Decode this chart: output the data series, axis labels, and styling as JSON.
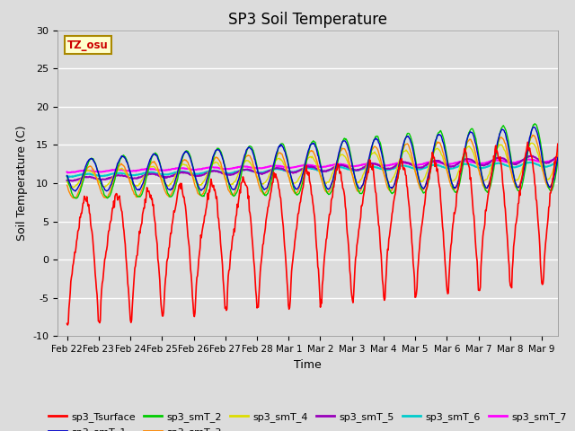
{
  "title": "SP3 Soil Temperature",
  "xlabel": "Time",
  "ylabel": "Soil Temperature (C)",
  "ylim": [
    -10,
    30
  ],
  "xlim": [
    -0.3,
    15.5
  ],
  "tz_label": "TZ_osu",
  "background_color": "#dcdcdc",
  "plot_bg_color": "#dcdcdc",
  "series_colors": {
    "sp3_Tsurface": "#ff0000",
    "sp3_smT_1": "#0000cc",
    "sp3_smT_2": "#00cc00",
    "sp3_smT_3": "#ff8800",
    "sp3_smT_4": "#dddd00",
    "sp3_smT_5": "#9900bb",
    "sp3_smT_6": "#00cccc",
    "sp3_smT_7": "#ff00ff"
  },
  "xtick_labels": [
    "Feb 22",
    "Feb 23",
    "Feb 24",
    "Feb 25",
    "Feb 26",
    "Feb 27",
    "Feb 28",
    "Mar 1",
    "Mar 2",
    "Mar 3",
    "Mar 4",
    "Mar 5",
    "Mar 6",
    "Mar 7",
    "Mar 8",
    "Mar 9"
  ],
  "xtick_positions": [
    0,
    1,
    2,
    3,
    4,
    5,
    6,
    7,
    8,
    9,
    10,
    11,
    12,
    13,
    14,
    15
  ],
  "legend_fontsize": 8,
  "title_fontsize": 12,
  "axis_fontsize": 9
}
